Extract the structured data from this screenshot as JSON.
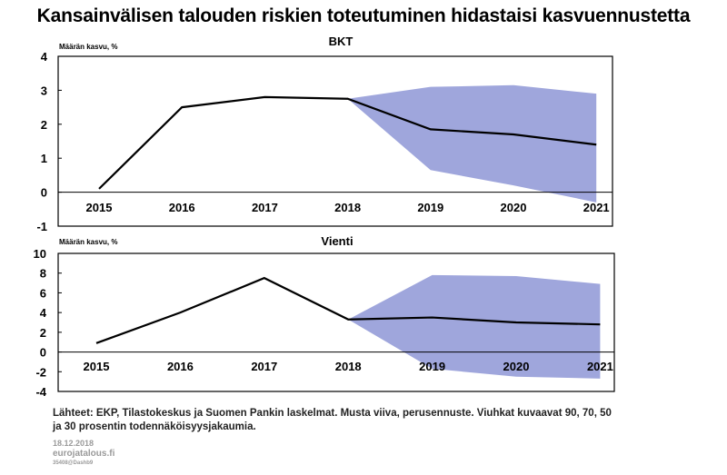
{
  "title": "Kansainvälisen talouden riskien toteutuminen hidastaisi kasvuennustetta",
  "colors": {
    "fan": "#9fa6dc",
    "line": "#000000"
  },
  "chart_data": [
    {
      "type": "line",
      "title": "BKT",
      "ylabel": "Määrän kasvu, %",
      "categories": [
        "2015",
        "2016",
        "2017",
        "2018",
        "2019",
        "2020",
        "2021"
      ],
      "x": [
        2015,
        2016,
        2017,
        2018,
        2019,
        2020,
        2021
      ],
      "ylim": [
        -1,
        4
      ],
      "yticks": [
        "4",
        "3",
        "2",
        "1",
        "0",
        "-1"
      ],
      "ytick_values": [
        4,
        3,
        2,
        1,
        0,
        -1
      ],
      "series": [
        {
          "name": "Perusennuste",
          "values": [
            0.1,
            2.5,
            2.8,
            2.75,
            1.85,
            1.7,
            1.4
          ]
        }
      ],
      "fan": {
        "x": [
          2018,
          2019,
          2020,
          2021
        ],
        "upper": [
          2.75,
          3.1,
          3.15,
          2.9
        ],
        "lower": [
          2.75,
          0.65,
          0.2,
          -0.3
        ]
      }
    },
    {
      "type": "line",
      "title": "Vienti",
      "ylabel": "Määrän kasvu, %",
      "categories": [
        "2015",
        "2016",
        "2017",
        "2018",
        "2019",
        "2020",
        "2021"
      ],
      "x": [
        2015,
        2016,
        2017,
        2018,
        2019,
        2020,
        2021
      ],
      "ylim": [
        -4,
        10
      ],
      "yticks": [
        "10",
        "8",
        "6",
        "4",
        "2",
        "0",
        "-2",
        "-4"
      ],
      "ytick_values": [
        10,
        8,
        6,
        4,
        2,
        0,
        -2,
        -4
      ],
      "series": [
        {
          "name": "Perusennuste",
          "values": [
            0.9,
            4.0,
            7.5,
            3.3,
            3.5,
            3.0,
            2.8
          ]
        }
      ],
      "fan": {
        "x": [
          2018,
          2019,
          2020,
          2021
        ],
        "upper": [
          3.3,
          7.8,
          7.7,
          6.9
        ],
        "lower": [
          3.3,
          -1.7,
          -2.5,
          -2.7
        ]
      }
    }
  ],
  "footer": {
    "source": "Lähteet: EKP, Tilastokeskus ja Suomen Pankin laskelmat. Musta viiva, perusennuste. Viuhkat kuvaavat 90, 70, 50 ja 30 prosentin todennäköisyysjakaumia.",
    "date": "18.12.2018",
    "site": "eurojatalous.fi",
    "id": "35408@Dashb9"
  }
}
